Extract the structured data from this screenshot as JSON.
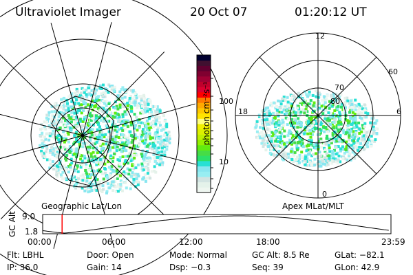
{
  "header": {
    "instrument": "Ultraviolet Imager",
    "date": "20 Oct 07",
    "time": "01:20:12 UT"
  },
  "left_map": {
    "label": "Geographic Lat/Lon"
  },
  "right_map": {
    "label": "Apex MLat/MLT",
    "mlt_labels": [
      "12",
      "18",
      "6",
      "0"
    ],
    "lat_labels": [
      "60",
      "70",
      "80"
    ]
  },
  "colorbar": {
    "unit_label": "photon cm⁻²s⁻¹",
    "tick_labels": [
      "100",
      "10"
    ],
    "colors": [
      "#eef6f0",
      "#e4f2ea",
      "#d2e4e2",
      "#98eef2",
      "#88e6f0",
      "#28e0d4",
      "#2ce068",
      "#46dc46",
      "#60ec10",
      "#94f000",
      "#bef000",
      "#dcf000",
      "#f0f000",
      "#ffff80",
      "#ffe400",
      "#ffc800",
      "#ffaa00",
      "#ff7a00",
      "#ff0000",
      "#dc0030",
      "#c0002c",
      "#a00034",
      "#800030",
      "#600030",
      "#401030",
      "#000030"
    ]
  },
  "timeline": {
    "ylabel": "GC Alt",
    "y_ticks": [
      "9.0",
      "1.8"
    ],
    "x_ticks": [
      "00:00",
      "06:00",
      "12:00",
      "18:00",
      "23:59"
    ],
    "marker_color": "#ff0000"
  },
  "info": {
    "flt": "Flt: LBHL",
    "ip": "IP: 36.0",
    "door": "Door: Open",
    "gain": "Gain: 14",
    "mode": "Mode: Normal",
    "dsp": "Dsp:    −0.3",
    "gcalt": "GC Alt: 8.5 Re",
    "seq": "Seq: 39",
    "glat": "GLat: −82.1",
    "glon": "GLon:  42.9"
  }
}
